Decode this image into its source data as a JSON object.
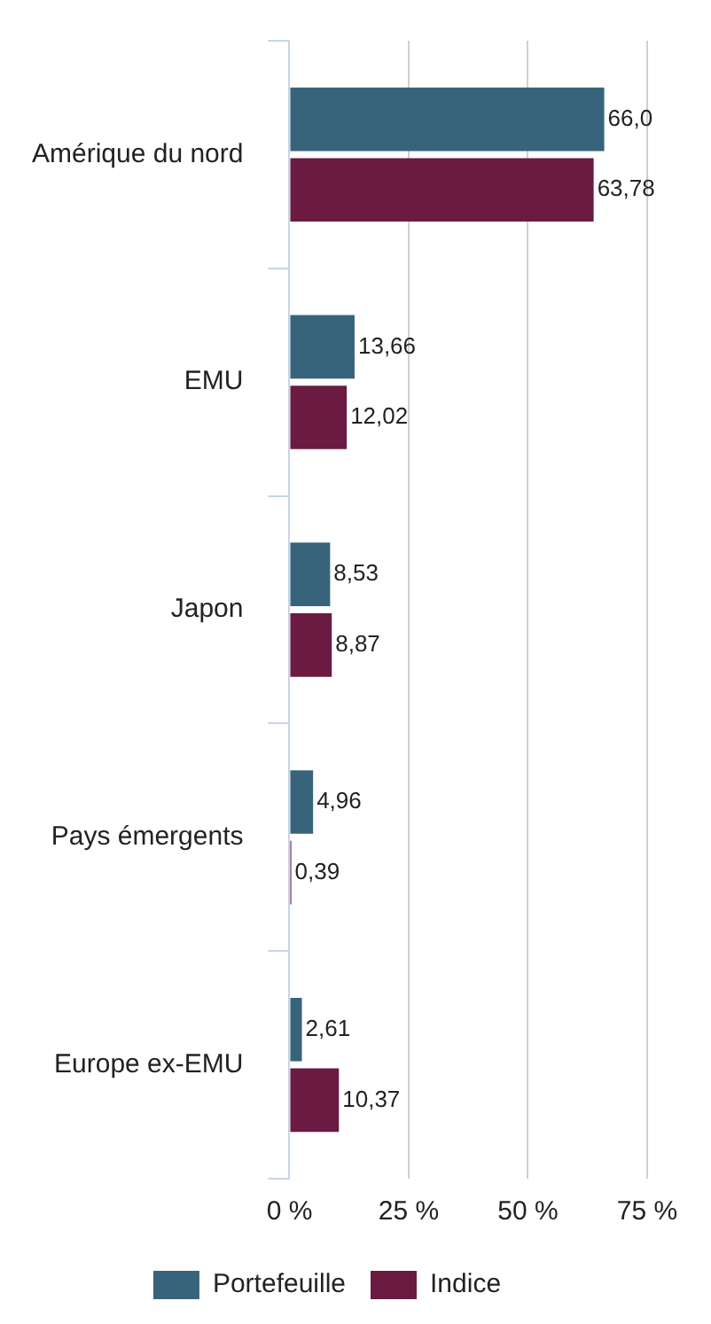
{
  "chart_data": {
    "type": "bar",
    "orientation": "horizontal",
    "categories": [
      "Amérique du nord",
      "EMU",
      "Japon",
      "Pays émergents",
      "Europe ex-EMU"
    ],
    "series": [
      {
        "name": "Portefeuille",
        "color": "#37647a",
        "values": [
          66.0,
          13.66,
          8.53,
          4.96,
          2.61
        ],
        "value_labels": [
          "66,0",
          "13,66",
          "8,53",
          "4,96",
          "2,61"
        ]
      },
      {
        "name": "Indice",
        "color": "#6b1a42",
        "values": [
          63.78,
          12.02,
          8.87,
          0.39,
          10.37
        ],
        "value_labels": [
          "63,78",
          "12,02",
          "8,87",
          "0,39",
          "10,37"
        ]
      }
    ],
    "xlim": [
      0,
      75
    ],
    "xticks": [
      {
        "value": 0,
        "label": "0 %"
      },
      {
        "value": 25,
        "label": "25 %"
      },
      {
        "value": 50,
        "label": "50 %"
      },
      {
        "value": 75,
        "label": "75 %"
      }
    ],
    "grid": "x",
    "legend": "bottom"
  }
}
